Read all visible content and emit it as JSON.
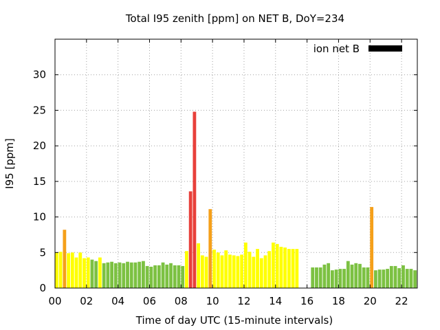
{
  "chart_data": {
    "type": "bar",
    "title": "Total I95 zenith [ppm] on NET B, DoY=234",
    "xlabel": "Time of day UTC (15-minute intervals)",
    "ylabel": "I95 [ppm]",
    "xlim": [
      0,
      23
    ],
    "ylim": [
      0,
      35
    ],
    "x_ticks": [
      "00",
      "02",
      "04",
      "06",
      "08",
      "10",
      "12",
      "14",
      "16",
      "18",
      "20",
      "22"
    ],
    "x_tick_values": [
      0,
      2,
      4,
      6,
      8,
      10,
      12,
      14,
      16,
      18,
      20,
      22
    ],
    "y_ticks": [
      "0",
      "5",
      "10",
      "15",
      "20",
      "25",
      "30"
    ],
    "y_tick_values": [
      0,
      5,
      10,
      15,
      20,
      25,
      30
    ],
    "grid": true,
    "legend": {
      "label": "ion net B",
      "color": "#000000",
      "placement": "top-right"
    },
    "bar_width_hours": 0.21,
    "colors": {
      "g": "#7cc142",
      "y": "#ffff00",
      "o": "#f5a01a",
      "r": "#e8403a"
    },
    "series": [
      {
        "values": [
          [
            0.0,
            5.0,
            "y"
          ],
          [
            0.25,
            5.1,
            "y"
          ],
          [
            0.5,
            8.2,
            "o"
          ],
          [
            0.75,
            4.9,
            "y"
          ],
          [
            1.0,
            5.0,
            "y"
          ],
          [
            1.25,
            4.3,
            "y"
          ],
          [
            1.5,
            5.0,
            "y"
          ],
          [
            1.75,
            4.2,
            "y"
          ],
          [
            2.0,
            4.3,
            "y"
          ],
          [
            2.25,
            4.0,
            "g"
          ],
          [
            2.5,
            3.8,
            "g"
          ],
          [
            2.75,
            4.3,
            "y"
          ],
          [
            3.0,
            3.5,
            "g"
          ],
          [
            3.25,
            3.6,
            "g"
          ],
          [
            3.5,
            3.7,
            "g"
          ],
          [
            3.75,
            3.5,
            "g"
          ],
          [
            4.0,
            3.6,
            "g"
          ],
          [
            4.25,
            3.5,
            "g"
          ],
          [
            4.5,
            3.7,
            "g"
          ],
          [
            4.75,
            3.6,
            "g"
          ],
          [
            5.0,
            3.6,
            "g"
          ],
          [
            5.25,
            3.7,
            "g"
          ],
          [
            5.5,
            3.8,
            "g"
          ],
          [
            5.75,
            3.1,
            "g"
          ],
          [
            6.0,
            3.0,
            "g"
          ],
          [
            6.25,
            3.2,
            "g"
          ],
          [
            6.5,
            3.2,
            "g"
          ],
          [
            6.75,
            3.6,
            "g"
          ],
          [
            7.0,
            3.3,
            "g"
          ],
          [
            7.25,
            3.5,
            "g"
          ],
          [
            7.5,
            3.2,
            "g"
          ],
          [
            7.75,
            3.2,
            "g"
          ],
          [
            8.0,
            3.1,
            "g"
          ],
          [
            8.25,
            5.2,
            "y"
          ],
          [
            8.5,
            13.6,
            "r"
          ],
          [
            8.75,
            24.8,
            "r"
          ],
          [
            9.0,
            6.3,
            "y"
          ],
          [
            9.25,
            4.6,
            "y"
          ],
          [
            9.5,
            4.4,
            "y"
          ],
          [
            9.75,
            11.1,
            "o"
          ],
          [
            10.0,
            5.4,
            "y"
          ],
          [
            10.25,
            5.0,
            "y"
          ],
          [
            10.5,
            4.6,
            "y"
          ],
          [
            10.75,
            5.3,
            "y"
          ],
          [
            11.0,
            4.7,
            "y"
          ],
          [
            11.25,
            4.6,
            "y"
          ],
          [
            11.5,
            4.5,
            "y"
          ],
          [
            11.75,
            4.7,
            "y"
          ],
          [
            12.0,
            6.4,
            "y"
          ],
          [
            12.25,
            5.1,
            "y"
          ],
          [
            12.5,
            4.4,
            "y"
          ],
          [
            12.75,
            5.5,
            "y"
          ],
          [
            13.0,
            4.2,
            "y"
          ],
          [
            13.25,
            4.6,
            "y"
          ],
          [
            13.5,
            5.2,
            "y"
          ],
          [
            13.75,
            6.4,
            "y"
          ],
          [
            14.0,
            6.2,
            "y"
          ],
          [
            14.25,
            5.8,
            "y"
          ],
          [
            14.5,
            5.7,
            "y"
          ],
          [
            14.75,
            5.5,
            "y"
          ],
          [
            15.0,
            5.5,
            "y"
          ],
          [
            15.25,
            5.5,
            "y"
          ],
          [
            16.25,
            2.9,
            "g"
          ],
          [
            16.5,
            2.9,
            "g"
          ],
          [
            16.75,
            2.9,
            "g"
          ],
          [
            17.0,
            3.3,
            "g"
          ],
          [
            17.25,
            3.5,
            "g"
          ],
          [
            17.5,
            2.5,
            "g"
          ],
          [
            17.75,
            2.6,
            "g"
          ],
          [
            18.0,
            2.7,
            "g"
          ],
          [
            18.25,
            2.7,
            "g"
          ],
          [
            18.5,
            3.8,
            "g"
          ],
          [
            18.75,
            3.3,
            "g"
          ],
          [
            19.0,
            3.5,
            "g"
          ],
          [
            19.25,
            3.4,
            "g"
          ],
          [
            19.5,
            2.9,
            "g"
          ],
          [
            19.75,
            2.9,
            "g"
          ],
          [
            20.0,
            11.4,
            "o"
          ],
          [
            20.25,
            2.5,
            "g"
          ],
          [
            20.5,
            2.6,
            "g"
          ],
          [
            20.75,
            2.6,
            "g"
          ],
          [
            21.0,
            2.7,
            "g"
          ],
          [
            21.25,
            3.1,
            "g"
          ],
          [
            21.5,
            3.1,
            "g"
          ],
          [
            21.75,
            2.8,
            "g"
          ],
          [
            22.0,
            3.2,
            "g"
          ],
          [
            22.25,
            2.7,
            "g"
          ],
          [
            22.5,
            2.7,
            "g"
          ],
          [
            22.75,
            2.5,
            "g"
          ]
        ]
      }
    ]
  }
}
